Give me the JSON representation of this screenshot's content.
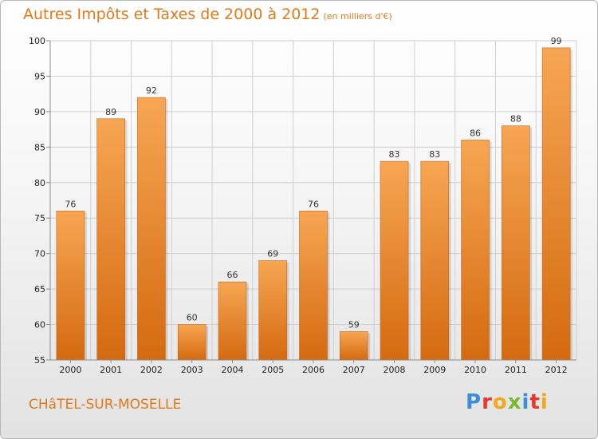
{
  "header": {
    "title": "Autres Impôts et Taxes de 2000 à 2012",
    "subtitle": "(en milliers d'€)"
  },
  "footer": {
    "place": "CHâTEL-SUR-MOSELLE",
    "brand_letters": [
      "P",
      "r",
      "o",
      "x",
      "i",
      "t",
      "i"
    ],
    "brand_colors": [
      "#3a8fd6",
      "#e8372c",
      "#f2a81d",
      "#7ab833",
      "#3a8fd6",
      "#e8372c",
      "#f2a81d"
    ]
  },
  "colors": {
    "title": "#e07a1d",
    "bar_top": "#f7a653",
    "bar_bottom": "#d46a10",
    "grid": "#d0d0d0",
    "axis": "#8c8c8c"
  },
  "chart_data": {
    "type": "bar",
    "categories": [
      "2000",
      "2001",
      "2002",
      "2003",
      "2004",
      "2005",
      "2006",
      "2007",
      "2008",
      "2009",
      "2010",
      "2011",
      "2012"
    ],
    "values": [
      76,
      89,
      92,
      60,
      66,
      69,
      76,
      59,
      83,
      83,
      86,
      88,
      99
    ],
    "ylim": [
      55,
      100
    ],
    "yticks": [
      55,
      60,
      65,
      70,
      75,
      80,
      85,
      90,
      95,
      100
    ],
    "grid": true
  }
}
